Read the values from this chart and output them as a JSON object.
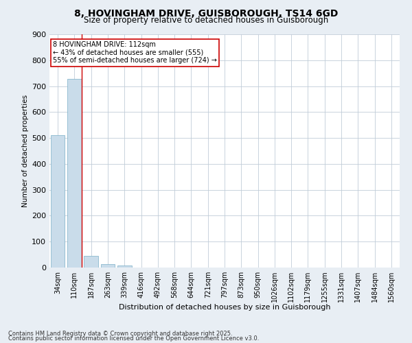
{
  "title1": "8, HOVINGHAM DRIVE, GUISBOROUGH, TS14 6GD",
  "title2": "Size of property relative to detached houses in Guisborough",
  "xlabel": "Distribution of detached houses by size in Guisborough",
  "ylabel": "Number of detached properties",
  "categories": [
    "34sqm",
    "110sqm",
    "187sqm",
    "263sqm",
    "339sqm",
    "416sqm",
    "492sqm",
    "568sqm",
    "644sqm",
    "721sqm",
    "797sqm",
    "873sqm",
    "950sqm",
    "1026sqm",
    "1102sqm",
    "1179sqm",
    "1255sqm",
    "1331sqm",
    "1407sqm",
    "1484sqm",
    "1560sqm"
  ],
  "values": [
    510,
    727,
    45,
    12,
    7,
    0,
    0,
    0,
    0,
    0,
    0,
    0,
    0,
    0,
    0,
    0,
    0,
    0,
    0,
    0,
    0
  ],
  "bar_color": "#c9dcea",
  "bar_edgecolor": "#7aafc7",
  "highlight_index": 1,
  "vline_color": "#cc0000",
  "ylim": [
    0,
    900
  ],
  "yticks": [
    0,
    100,
    200,
    300,
    400,
    500,
    600,
    700,
    800,
    900
  ],
  "annotation_line1": "8 HOVINGHAM DRIVE: 112sqm",
  "annotation_line2": "← 43% of detached houses are smaller (555)",
  "annotation_line3": "55% of semi-detached houses are larger (724) →",
  "annotation_boxcolor": "white",
  "annotation_edgecolor": "#cc0000",
  "footer1": "Contains HM Land Registry data © Crown copyright and database right 2025.",
  "footer2": "Contains public sector information licensed under the Open Government Licence v3.0.",
  "bg_color": "#e8eef4",
  "plot_bg_color": "white",
  "grid_color": "#c0ccd8",
  "title1_fontsize": 10,
  "title2_fontsize": 8.5,
  "ylabel_fontsize": 7.5,
  "xlabel_fontsize": 8,
  "tick_fontsize": 7,
  "footer_fontsize": 6
}
